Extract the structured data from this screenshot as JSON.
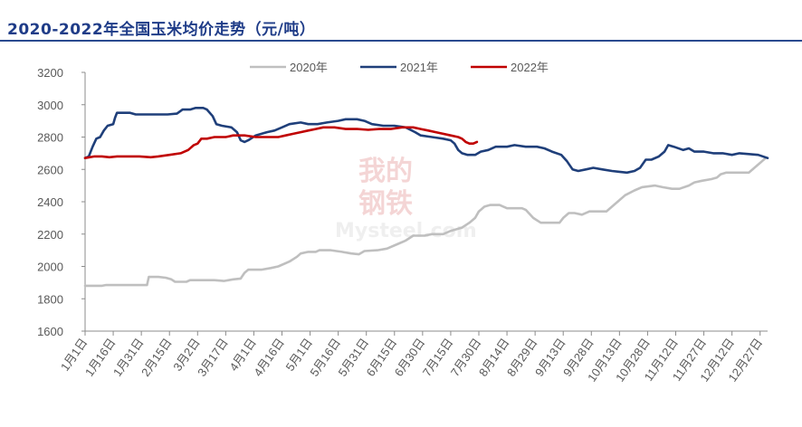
{
  "title": "2020-2022年全国玉米均价走势（元/吨）",
  "watermark": {
    "line1": "我的",
    "line2": "钢铁",
    "line3": "Mysteel.com"
  },
  "colors": {
    "s2020": "#bfbfbf",
    "s2021": "#1f3f7a",
    "s2022": "#c00000",
    "axis": "#8c8c8c",
    "title": "#1f3c88"
  },
  "chart_data": {
    "type": "line",
    "title": "2020-2022年全国玉米均价走势（元/吨）",
    "xlabel": "",
    "ylabel": "",
    "ylim": [
      1600,
      3200
    ],
    "yticks": [
      1600,
      1800,
      2000,
      2200,
      2400,
      2600,
      2800,
      3000,
      3200
    ],
    "xlim": [
      1,
      365
    ],
    "xticks": [
      {
        "day": 1,
        "label": "1月1日"
      },
      {
        "day": 16,
        "label": "1月16日"
      },
      {
        "day": 31,
        "label": "1月31日"
      },
      {
        "day": 46,
        "label": "2月15日"
      },
      {
        "day": 61,
        "label": "3月2日"
      },
      {
        "day": 76,
        "label": "3月17日"
      },
      {
        "day": 91,
        "label": "4月1日"
      },
      {
        "day": 106,
        "label": "4月16日"
      },
      {
        "day": 121,
        "label": "5月1日"
      },
      {
        "day": 136,
        "label": "5月16日"
      },
      {
        "day": 151,
        "label": "5月31日"
      },
      {
        "day": 166,
        "label": "6月15日"
      },
      {
        "day": 181,
        "label": "6月30日"
      },
      {
        "day": 196,
        "label": "7月15日"
      },
      {
        "day": 211,
        "label": "7月30日"
      },
      {
        "day": 226,
        "label": "8月14日"
      },
      {
        "day": 241,
        "label": "8月29日"
      },
      {
        "day": 256,
        "label": "9月13日"
      },
      {
        "day": 271,
        "label": "9月28日"
      },
      {
        "day": 286,
        "label": "10月13日"
      },
      {
        "day": 301,
        "label": "10月28日"
      },
      {
        "day": 316,
        "label": "11月12日"
      },
      {
        "day": 331,
        "label": "11月27日"
      },
      {
        "day": 346,
        "label": "12月12日"
      },
      {
        "day": 361,
        "label": "12月27日"
      }
    ],
    "legend": "top-center",
    "grid": false,
    "series": [
      {
        "name": "2020年",
        "color": "#bfbfbf",
        "points": [
          [
            1,
            1880
          ],
          [
            10,
            1880
          ],
          [
            12,
            1885
          ],
          [
            20,
            1885
          ],
          [
            30,
            1885
          ],
          [
            34,
            1885
          ],
          [
            35,
            1935
          ],
          [
            40,
            1935
          ],
          [
            44,
            1930
          ],
          [
            47,
            1920
          ],
          [
            49,
            1905
          ],
          [
            55,
            1905
          ],
          [
            57,
            1915
          ],
          [
            70,
            1915
          ],
          [
            75,
            1910
          ],
          [
            80,
            1920
          ],
          [
            84,
            1925
          ],
          [
            86,
            1960
          ],
          [
            88,
            1980
          ],
          [
            95,
            1980
          ],
          [
            100,
            1990
          ],
          [
            104,
            2000
          ],
          [
            110,
            2030
          ],
          [
            114,
            2060
          ],
          [
            116,
            2080
          ],
          [
            120,
            2090
          ],
          [
            124,
            2090
          ],
          [
            126,
            2100
          ],
          [
            132,
            2100
          ],
          [
            138,
            2090
          ],
          [
            143,
            2080
          ],
          [
            147,
            2075
          ],
          [
            150,
            2095
          ],
          [
            157,
            2100
          ],
          [
            162,
            2110
          ],
          [
            168,
            2140
          ],
          [
            172,
            2160
          ],
          [
            176,
            2190
          ],
          [
            182,
            2190
          ],
          [
            186,
            2200
          ],
          [
            192,
            2200
          ],
          [
            196,
            2220
          ],
          [
            202,
            2240
          ],
          [
            206,
            2270
          ],
          [
            209,
            2300
          ],
          [
            211,
            2340
          ],
          [
            214,
            2370
          ],
          [
            217,
            2380
          ],
          [
            222,
            2380
          ],
          [
            226,
            2360
          ],
          [
            234,
            2360
          ],
          [
            236,
            2350
          ],
          [
            240,
            2300
          ],
          [
            244,
            2270
          ],
          [
            248,
            2270
          ],
          [
            254,
            2270
          ],
          [
            256,
            2300
          ],
          [
            259,
            2330
          ],
          [
            262,
            2330
          ],
          [
            266,
            2320
          ],
          [
            270,
            2340
          ],
          [
            276,
            2340
          ],
          [
            279,
            2340
          ],
          [
            282,
            2370
          ],
          [
            285,
            2400
          ],
          [
            289,
            2440
          ],
          [
            294,
            2470
          ],
          [
            298,
            2490
          ],
          [
            305,
            2500
          ],
          [
            309,
            2490
          ],
          [
            314,
            2480
          ],
          [
            318,
            2480
          ],
          [
            323,
            2500
          ],
          [
            326,
            2520
          ],
          [
            330,
            2530
          ],
          [
            335,
            2540
          ],
          [
            338,
            2550
          ],
          [
            340,
            2570
          ],
          [
            343,
            2580
          ],
          [
            348,
            2580
          ],
          [
            352,
            2580
          ],
          [
            355,
            2580
          ],
          [
            357,
            2600
          ],
          [
            360,
            2630
          ],
          [
            364,
            2670
          ]
        ]
      },
      {
        "name": "2021年",
        "color": "#1f3f7a",
        "points": [
          [
            1,
            2670
          ],
          [
            3,
            2680
          ],
          [
            5,
            2740
          ],
          [
            7,
            2790
          ],
          [
            9,
            2800
          ],
          [
            11,
            2840
          ],
          [
            13,
            2870
          ],
          [
            16,
            2880
          ],
          [
            17,
            2920
          ],
          [
            18,
            2950
          ],
          [
            25,
            2950
          ],
          [
            28,
            2940
          ],
          [
            34,
            2940
          ],
          [
            38,
            2940
          ],
          [
            45,
            2940
          ],
          [
            50,
            2945
          ],
          [
            53,
            2970
          ],
          [
            57,
            2970
          ],
          [
            60,
            2980
          ],
          [
            64,
            2980
          ],
          [
            66,
            2970
          ],
          [
            69,
            2930
          ],
          [
            71,
            2880
          ],
          [
            74,
            2870
          ],
          [
            79,
            2860
          ],
          [
            82,
            2830
          ],
          [
            84,
            2780
          ],
          [
            86,
            2770
          ],
          [
            88,
            2780
          ],
          [
            92,
            2810
          ],
          [
            98,
            2830
          ],
          [
            102,
            2840
          ],
          [
            106,
            2860
          ],
          [
            110,
            2880
          ],
          [
            116,
            2890
          ],
          [
            120,
            2880
          ],
          [
            125,
            2880
          ],
          [
            130,
            2890
          ],
          [
            136,
            2900
          ],
          [
            140,
            2910
          ],
          [
            146,
            2910
          ],
          [
            150,
            2900
          ],
          [
            154,
            2880
          ],
          [
            160,
            2870
          ],
          [
            166,
            2870
          ],
          [
            172,
            2860
          ],
          [
            177,
            2830
          ],
          [
            180,
            2810
          ],
          [
            186,
            2800
          ],
          [
            192,
            2790
          ],
          [
            196,
            2780
          ],
          [
            198,
            2760
          ],
          [
            200,
            2720
          ],
          [
            202,
            2700
          ],
          [
            205,
            2690
          ],
          [
            209,
            2690
          ],
          [
            212,
            2710
          ],
          [
            216,
            2720
          ],
          [
            220,
            2740
          ],
          [
            226,
            2740
          ],
          [
            230,
            2750
          ],
          [
            236,
            2740
          ],
          [
            242,
            2740
          ],
          [
            246,
            2730
          ],
          [
            250,
            2710
          ],
          [
            255,
            2690
          ],
          [
            258,
            2650
          ],
          [
            261,
            2600
          ],
          [
            264,
            2590
          ],
          [
            268,
            2600
          ],
          [
            272,
            2610
          ],
          [
            277,
            2600
          ],
          [
            282,
            2590
          ],
          [
            286,
            2585
          ],
          [
            290,
            2580
          ],
          [
            294,
            2590
          ],
          [
            297,
            2610
          ],
          [
            300,
            2660
          ],
          [
            303,
            2660
          ],
          [
            307,
            2680
          ],
          [
            310,
            2710
          ],
          [
            312,
            2750
          ],
          [
            315,
            2740
          ],
          [
            320,
            2720
          ],
          [
            323,
            2730
          ],
          [
            326,
            2710
          ],
          [
            331,
            2710
          ],
          [
            336,
            2700
          ],
          [
            341,
            2700
          ],
          [
            346,
            2690
          ],
          [
            350,
            2700
          ],
          [
            355,
            2695
          ],
          [
            360,
            2690
          ],
          [
            365,
            2670
          ]
        ]
      },
      {
        "name": "2022年",
        "color": "#c00000",
        "points": [
          [
            1,
            2670
          ],
          [
            6,
            2680
          ],
          [
            10,
            2680
          ],
          [
            14,
            2675
          ],
          [
            18,
            2680
          ],
          [
            24,
            2680
          ],
          [
            30,
            2680
          ],
          [
            36,
            2675
          ],
          [
            40,
            2680
          ],
          [
            46,
            2690
          ],
          [
            52,
            2700
          ],
          [
            56,
            2720
          ],
          [
            59,
            2750
          ],
          [
            61,
            2760
          ],
          [
            63,
            2790
          ],
          [
            66,
            2790
          ],
          [
            70,
            2800
          ],
          [
            76,
            2800
          ],
          [
            80,
            2810
          ],
          [
            86,
            2810
          ],
          [
            92,
            2800
          ],
          [
            98,
            2800
          ],
          [
            104,
            2800
          ],
          [
            108,
            2810
          ],
          [
            112,
            2820
          ],
          [
            116,
            2830
          ],
          [
            120,
            2840
          ],
          [
            124,
            2850
          ],
          [
            128,
            2860
          ],
          [
            134,
            2860
          ],
          [
            140,
            2850
          ],
          [
            146,
            2850
          ],
          [
            152,
            2845
          ],
          [
            158,
            2850
          ],
          [
            164,
            2850
          ],
          [
            170,
            2860
          ],
          [
            176,
            2860
          ],
          [
            180,
            2850
          ],
          [
            184,
            2840
          ],
          [
            188,
            2830
          ],
          [
            192,
            2820
          ],
          [
            196,
            2810
          ],
          [
            200,
            2800
          ],
          [
            202,
            2790
          ],
          [
            204,
            2770
          ],
          [
            206,
            2760
          ],
          [
            208,
            2760
          ],
          [
            210,
            2770
          ]
        ]
      }
    ]
  }
}
